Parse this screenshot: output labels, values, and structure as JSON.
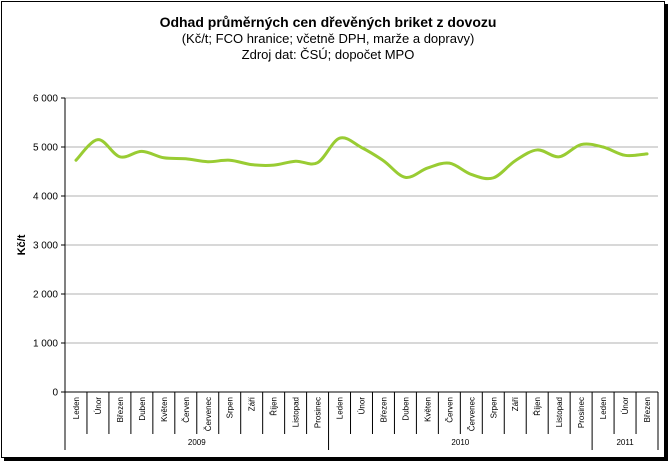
{
  "chart_data": {
    "type": "line",
    "title": "Odhad průměrných cen dřevěných briket z dovozu",
    "subtitle_lines": [
      "(Kč/t; FCO hranice; včetně DPH, marže a dopravy)",
      "Zdroj dat: ČSÚ; dopočet MPO"
    ],
    "ylabel": "Kč/t",
    "xlabel": "",
    "ylim": [
      0,
      6000
    ],
    "yticks": [
      0,
      1000,
      2000,
      3000,
      4000,
      5000,
      6000
    ],
    "ytick_labels": [
      "0",
      "1 000",
      "2 000",
      "3 000",
      "4 000",
      "5 000",
      "6 000"
    ],
    "grid": true,
    "legend": "none",
    "line_color": "#99cc33",
    "categories": [
      "Leden",
      "Únor",
      "Březen",
      "Duben",
      "Květen",
      "Červen",
      "Červenec",
      "Srpen",
      "Září",
      "Říjen",
      "Listopad",
      "Prosinec",
      "Leden",
      "Únor",
      "Březen",
      "Duben",
      "Květen",
      "Červen",
      "Červenec",
      "Srpen",
      "Září",
      "Říjen",
      "Listopad",
      "Prosinec",
      "Leden",
      "Únor",
      "Březen"
    ],
    "year_groups": [
      {
        "label": "2009",
        "start": 0,
        "count": 12
      },
      {
        "label": "2010",
        "start": 12,
        "count": 12
      },
      {
        "label": "2011",
        "start": 24,
        "count": 3
      }
    ],
    "series": [
      {
        "values": [
          4730,
          5150,
          4800,
          4910,
          4780,
          4760,
          4700,
          4730,
          4640,
          4630,
          4710,
          4680,
          5180,
          4990,
          4720,
          4380,
          4570,
          4670,
          4440,
          4370,
          4720,
          4940,
          4800,
          5050,
          5000,
          4830,
          4860
        ]
      }
    ]
  }
}
